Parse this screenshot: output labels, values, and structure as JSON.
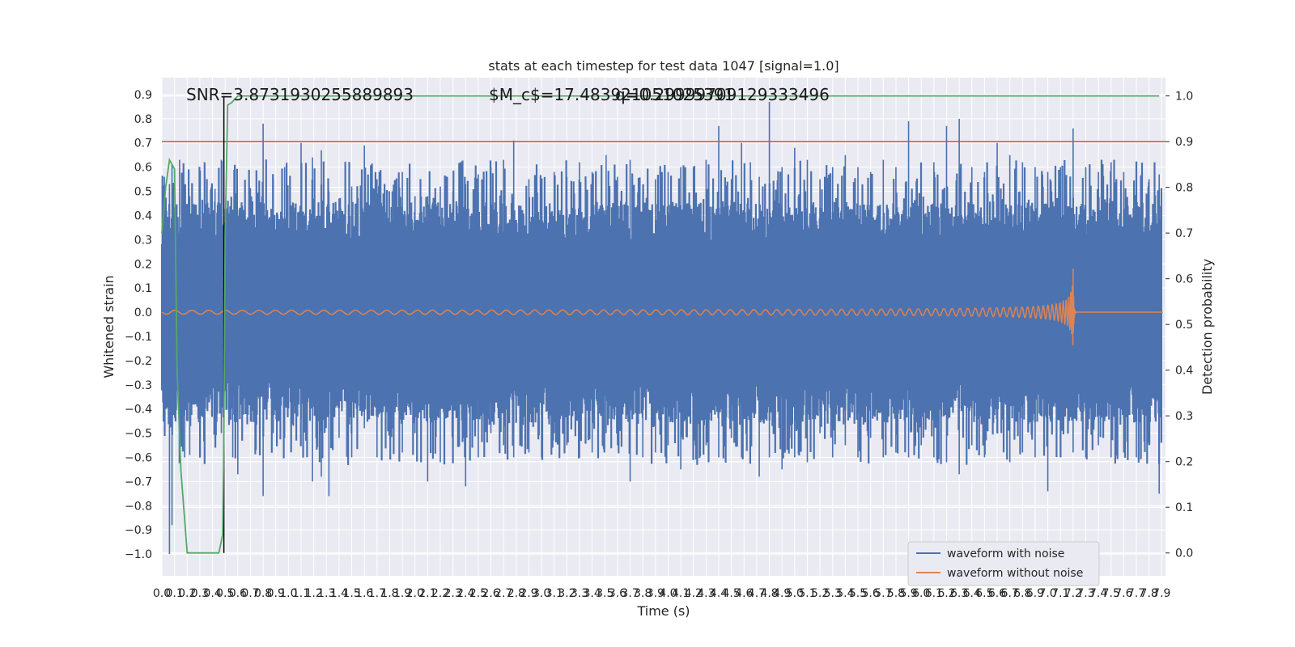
{
  "chart_data": {
    "type": "line",
    "title": "stats at each timestep for test data 1047 [signal=1.0]",
    "xlabel": "Time (s)",
    "ylabel": "Whitened strain",
    "y2label": "Detection probability",
    "xlim": [
      0.0,
      7.93
    ],
    "ylim": [
      -1.09,
      0.97
    ],
    "y2lim": [
      -0.05,
      1.04
    ],
    "x_ticks": [
      0.0,
      0.1,
      0.2,
      0.3,
      0.4,
      0.5,
      0.6,
      0.7,
      0.8,
      0.9,
      1.0,
      1.1,
      1.2,
      1.3,
      1.4,
      1.5,
      1.6,
      1.7,
      1.8,
      1.9,
      2.0,
      2.1,
      2.2,
      2.3,
      2.4,
      2.5,
      2.6,
      2.7,
      2.8,
      2.9,
      3.0,
      3.1,
      3.2,
      3.3,
      3.4,
      3.5,
      3.6,
      3.7,
      3.8,
      3.9,
      4.0,
      4.1,
      4.2,
      4.3,
      4.4,
      4.5,
      4.6,
      4.7,
      4.8,
      4.9,
      5.0,
      5.1,
      5.2,
      5.3,
      5.4,
      5.5,
      5.6,
      5.7,
      5.8,
      5.9,
      6.0,
      6.1,
      6.2,
      6.3,
      6.4,
      6.5,
      6.6,
      6.7,
      6.8,
      6.9,
      7.0,
      7.1,
      7.2,
      7.3,
      7.4,
      7.5,
      7.6,
      7.7,
      7.8,
      7.9
    ],
    "y_ticks": [
      -1.0,
      -0.9,
      -0.8,
      -0.7,
      -0.6,
      -0.5,
      -0.4,
      -0.3,
      -0.2,
      -0.1,
      0.0,
      0.1,
      0.2,
      0.3,
      0.4,
      0.5,
      0.6,
      0.7,
      0.8,
      0.9
    ],
    "y2_ticks": [
      0.0,
      0.1,
      0.2,
      0.3,
      0.4,
      0.5,
      0.6,
      0.7,
      0.8,
      0.9,
      1.0
    ],
    "grid": true,
    "legend_position": "bottom-right",
    "annotations": {
      "snr": "SNR=3.8731930255889893",
      "mc": "$M_c$=17.483921051025391",
      "q": "q=0.29999709129333496"
    },
    "threshold_line": {
      "y2": 0.9,
      "color": "#c44e52"
    },
    "marker_line": {
      "x": 0.49,
      "color": "#000000"
    },
    "series": [
      {
        "name": "waveform with noise",
        "color": "#4c72b0",
        "axis": "left",
        "envelope_spikes": [
          {
            "x": 0.02,
            "hi": 0.56,
            "lo": -0.45
          },
          {
            "x": 0.06,
            "hi": 0.53,
            "lo": -1.0
          },
          {
            "x": 0.08,
            "hi": 0.61,
            "lo": -0.88
          },
          {
            "x": 0.14,
            "hi": 0.63,
            "lo": -0.42
          },
          {
            "x": 0.18,
            "hi": 0.47,
            "lo": -0.6
          },
          {
            "x": 0.22,
            "hi": 0.48,
            "lo": -0.59
          },
          {
            "x": 0.3,
            "hi": 0.52,
            "lo": -0.4
          },
          {
            "x": 0.42,
            "hi": 0.51,
            "lo": -0.52
          },
          {
            "x": 0.47,
            "hi": 0.63,
            "lo": -0.5
          },
          {
            "x": 0.56,
            "hi": 0.38,
            "lo": -0.6
          },
          {
            "x": 0.6,
            "hi": 0.4,
            "lo": -0.67
          },
          {
            "x": 0.7,
            "hi": 0.47,
            "lo": -0.45
          },
          {
            "x": 0.8,
            "hi": 0.78,
            "lo": -0.76
          },
          {
            "x": 0.88,
            "hi": 0.55,
            "lo": -0.5
          },
          {
            "x": 0.97,
            "hi": 0.6,
            "lo": -0.52
          },
          {
            "x": 1.04,
            "hi": 0.45,
            "lo": -0.47
          },
          {
            "x": 1.1,
            "hi": 0.7,
            "lo": -0.44
          },
          {
            "x": 1.19,
            "hi": 0.64,
            "lo": -0.7
          },
          {
            "x": 1.26,
            "hi": 0.67,
            "lo": -0.68
          },
          {
            "x": 1.32,
            "hi": 0.5,
            "lo": -0.76
          },
          {
            "x": 1.4,
            "hi": 0.47,
            "lo": -0.52
          },
          {
            "x": 1.5,
            "hi": 0.52,
            "lo": -0.6
          },
          {
            "x": 1.6,
            "hi": 0.69,
            "lo": -0.48
          },
          {
            "x": 1.7,
            "hi": 0.55,
            "lo": -0.6
          },
          {
            "x": 1.82,
            "hi": 0.5,
            "lo": -0.48
          },
          {
            "x": 1.9,
            "hi": 0.58,
            "lo": -0.58
          },
          {
            "x": 2.0,
            "hi": 0.48,
            "lo": -0.5
          },
          {
            "x": 2.1,
            "hi": 0.48,
            "lo": -0.7
          },
          {
            "x": 2.2,
            "hi": 0.52,
            "lo": -0.62
          },
          {
            "x": 2.3,
            "hi": 0.5,
            "lo": -0.55
          },
          {
            "x": 2.4,
            "hi": 0.53,
            "lo": -0.72
          },
          {
            "x": 2.5,
            "hi": 0.57,
            "lo": -0.6
          },
          {
            "x": 2.6,
            "hi": 0.6,
            "lo": -0.5
          },
          {
            "x": 2.7,
            "hi": 0.63,
            "lo": -0.55
          },
          {
            "x": 2.78,
            "hi": 0.71,
            "lo": -0.6
          },
          {
            "x": 2.9,
            "hi": 0.55,
            "lo": -0.58
          },
          {
            "x": 3.0,
            "hi": 0.52,
            "lo": -0.6
          },
          {
            "x": 3.1,
            "hi": 0.58,
            "lo": -0.5
          },
          {
            "x": 3.2,
            "hi": 0.56,
            "lo": -0.55
          },
          {
            "x": 3.3,
            "hi": 0.62,
            "lo": -0.6
          },
          {
            "x": 3.4,
            "hi": 0.58,
            "lo": -0.58
          },
          {
            "x": 3.51,
            "hi": 0.65,
            "lo": -0.5
          },
          {
            "x": 3.6,
            "hi": 0.56,
            "lo": -0.55
          },
          {
            "x": 3.7,
            "hi": 0.63,
            "lo": -0.7
          },
          {
            "x": 3.8,
            "hi": 0.5,
            "lo": -0.6
          },
          {
            "x": 3.9,
            "hi": 0.55,
            "lo": -0.58
          },
          {
            "x": 4.0,
            "hi": 0.58,
            "lo": -0.55
          },
          {
            "x": 4.1,
            "hi": 0.6,
            "lo": -0.65
          },
          {
            "x": 4.2,
            "hi": 0.6,
            "lo": -0.5
          },
          {
            "x": 4.3,
            "hi": 0.63,
            "lo": -0.55
          },
          {
            "x": 4.4,
            "hi": 0.77,
            "lo": -0.6
          },
          {
            "x": 4.5,
            "hi": 0.55,
            "lo": -0.52
          },
          {
            "x": 4.58,
            "hi": 0.7,
            "lo": -0.6
          },
          {
            "x": 4.65,
            "hi": 0.62,
            "lo": -0.55
          },
          {
            "x": 4.72,
            "hi": 0.56,
            "lo": -0.68
          },
          {
            "x": 4.8,
            "hi": 0.87,
            "lo": -0.6
          },
          {
            "x": 4.9,
            "hi": 0.6,
            "lo": -0.65
          },
          {
            "x": 5.0,
            "hi": 0.68,
            "lo": -0.6
          },
          {
            "x": 5.1,
            "hi": 0.63,
            "lo": -0.62
          },
          {
            "x": 5.2,
            "hi": 0.55,
            "lo": -0.5
          },
          {
            "x": 5.3,
            "hi": 0.6,
            "lo": -0.6
          },
          {
            "x": 5.4,
            "hi": 0.65,
            "lo": -0.55
          },
          {
            "x": 5.5,
            "hi": 0.6,
            "lo": -0.6
          },
          {
            "x": 5.6,
            "hi": 0.58,
            "lo": -0.52
          },
          {
            "x": 5.7,
            "hi": 0.63,
            "lo": -0.6
          },
          {
            "x": 5.8,
            "hi": 0.6,
            "lo": -0.58
          },
          {
            "x": 5.9,
            "hi": 0.79,
            "lo": -0.6
          },
          {
            "x": 6.0,
            "hi": 0.6,
            "lo": -0.55
          },
          {
            "x": 6.1,
            "hi": 0.62,
            "lo": -0.6
          },
          {
            "x": 6.2,
            "hi": 0.77,
            "lo": -0.62
          },
          {
            "x": 6.3,
            "hi": 0.8,
            "lo": -0.67
          },
          {
            "x": 6.4,
            "hi": 0.6,
            "lo": -0.55
          },
          {
            "x": 6.5,
            "hi": 0.58,
            "lo": -0.6
          },
          {
            "x": 6.6,
            "hi": 0.7,
            "lo": -0.5
          },
          {
            "x": 6.7,
            "hi": 0.65,
            "lo": -0.62
          },
          {
            "x": 6.8,
            "hi": 0.62,
            "lo": -0.58
          },
          {
            "x": 6.9,
            "hi": 0.6,
            "lo": -0.6
          },
          {
            "x": 7.0,
            "hi": 0.58,
            "lo": -0.74
          },
          {
            "x": 7.1,
            "hi": 0.6,
            "lo": -0.6
          },
          {
            "x": 7.2,
            "hi": 0.76,
            "lo": -0.58
          },
          {
            "x": 7.3,
            "hi": 0.6,
            "lo": -0.6
          },
          {
            "x": 7.4,
            "hi": 0.58,
            "lo": -0.55
          },
          {
            "x": 7.5,
            "hi": 0.62,
            "lo": -0.6
          },
          {
            "x": 7.6,
            "hi": 0.58,
            "lo": -0.58
          },
          {
            "x": 7.7,
            "hi": 0.6,
            "lo": -0.6
          },
          {
            "x": 7.8,
            "hi": 0.55,
            "lo": -0.55
          },
          {
            "x": 7.88,
            "hi": 0.57,
            "lo": -0.75
          }
        ]
      },
      {
        "name": "waveform without noise",
        "color": "#dd8452",
        "axis": "left",
        "chirp": {
          "start": 0.0,
          "merger": 7.2,
          "amp_end": 0.18,
          "amp_start": 0.004
        }
      },
      {
        "name": "detection probability",
        "color": "#55a868",
        "axis": "right",
        "x": [
          0.0,
          0.03,
          0.06,
          0.1,
          0.12,
          0.15,
          0.2,
          0.25,
          0.3,
          0.35,
          0.4,
          0.45,
          0.48,
          0.49,
          0.5,
          0.52,
          0.55,
          0.6,
          1.0,
          2.0,
          3.0,
          4.0,
          5.0,
          6.0,
          7.0,
          7.5,
          7.88
        ],
        "y": [
          0.7,
          0.8,
          0.86,
          0.84,
          0.4,
          0.18,
          0.0,
          0.0,
          0.0,
          0.0,
          0.0,
          0.0,
          0.04,
          0.25,
          0.7,
          0.98,
          0.985,
          1.0,
          1.0,
          1.0,
          1.0,
          1.0,
          1.0,
          1.0,
          1.0,
          1.0,
          1.0
        ]
      }
    ]
  }
}
